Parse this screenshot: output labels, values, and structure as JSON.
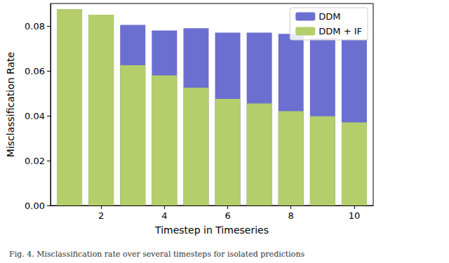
{
  "chart_data": {
    "type": "bar",
    "title": "Fig. 4. Misclassification rate over several timesteps for isolated predictions",
    "xlabel": "Timestep in Timeseries",
    "ylabel": "Misclassification Rate",
    "x": [
      1,
      2,
      3,
      4,
      5,
      6,
      7,
      8,
      9,
      10
    ],
    "series": [
      {
        "name": "DDM",
        "color": "#6b6fcf",
        "values": [
          0.0875,
          0.085,
          0.0805,
          0.078,
          0.079,
          0.077,
          0.077,
          0.0765,
          0.0745,
          0.074
        ]
      },
      {
        "name": "DDM + IF",
        "color": "#b3ce6b",
        "values": [
          0.0875,
          0.085,
          0.0625,
          0.058,
          0.0525,
          0.0475,
          0.0455,
          0.042,
          0.0398,
          0.037
        ]
      }
    ],
    "xlim": [
      0.4,
      10.6
    ],
    "xticks": [
      2,
      4,
      6,
      8,
      10
    ],
    "ylim": [
      0,
      0.09
    ],
    "yticks": [
      {
        "value": 0,
        "label": "0.00"
      },
      {
        "value": 0.02,
        "label": "0.02"
      },
      {
        "value": 0.04,
        "label": "0.04"
      },
      {
        "value": 0.06,
        "label": "0.06"
      },
      {
        "value": 0.08,
        "label": "0.08"
      }
    ],
    "legend": "upper right",
    "grid": false
  }
}
